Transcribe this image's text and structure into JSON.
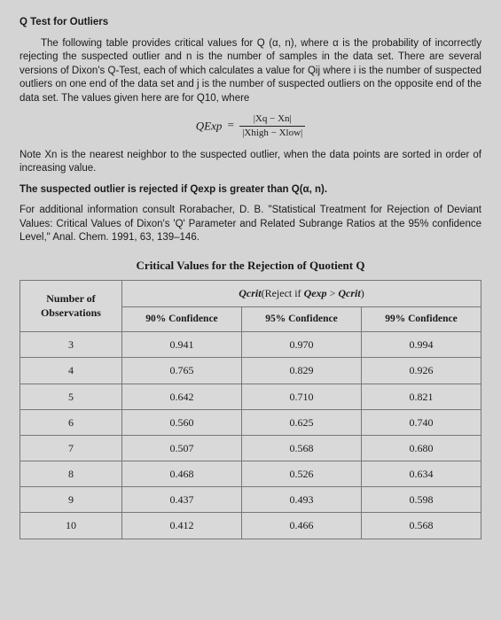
{
  "title": "Q Test for Outliers",
  "intro": "The following table provides critical values for Q (α, n), where α is the probability of incorrectly rejecting the suspected outlier and n is the number of samples in the data set. There are several versions of Dixon's Q-Test, each of which calculates a value for Qij where i is the number of suspected outliers on one end of the data set and j is the number of suspected outliers on the opposite end of the data set. The values given here are for Q10, where",
  "formula": {
    "label": "QExp",
    "eq": "=",
    "num": "|Xq − Xn|",
    "den": "|Xhigh − Xlow|"
  },
  "note_xn": "Note Xn is the nearest neighbor to the suspected outlier, when the data points are sorted in order of increasing value.",
  "reject_rule": "The suspected outlier is rejected if Qexp is greater than Q(α, n).",
  "reference": "For additional information consult Rorabacher, D. B. \"Statistical Treatment for Rejection of Deviant Values: Critical Values of Dixon's 'Q' Parameter and Related Subrange Ratios at the 95% confidence Level,\" Anal. Chem. 1991, 63, 139–146.",
  "table": {
    "title": "Critical Values for the Rejection of Quotient Q",
    "left_header_line1": "Number of",
    "left_header_line2": "Observations",
    "qcrit_label_pre": "Qcrit",
    "qcrit_label_mid": "(Reject if ",
    "qcrit_label_qexp": "Qexp",
    "qcrit_label_gt": " > ",
    "qcrit_label_qcrit": "Qcrit",
    "qcrit_label_post": ")",
    "columns": [
      "90% Confidence",
      "95% Confidence",
      "99% Confidence"
    ],
    "rows": [
      {
        "n": "3",
        "c90": "0.941",
        "c95": "0.970",
        "c99": "0.994"
      },
      {
        "n": "4",
        "c90": "0.765",
        "c95": "0.829",
        "c99": "0.926"
      },
      {
        "n": "5",
        "c90": "0.642",
        "c95": "0.710",
        "c99": "0.821"
      },
      {
        "n": "6",
        "c90": "0.560",
        "c95": "0.625",
        "c99": "0.740"
      },
      {
        "n": "7",
        "c90": "0.507",
        "c95": "0.568",
        "c99": "0.680"
      },
      {
        "n": "8",
        "c90": "0.468",
        "c95": "0.526",
        "c99": "0.634"
      },
      {
        "n": "9",
        "c90": "0.437",
        "c95": "0.493",
        "c99": "0.598"
      },
      {
        "n": "10",
        "c90": "0.412",
        "c95": "0.466",
        "c99": "0.568"
      }
    ]
  }
}
